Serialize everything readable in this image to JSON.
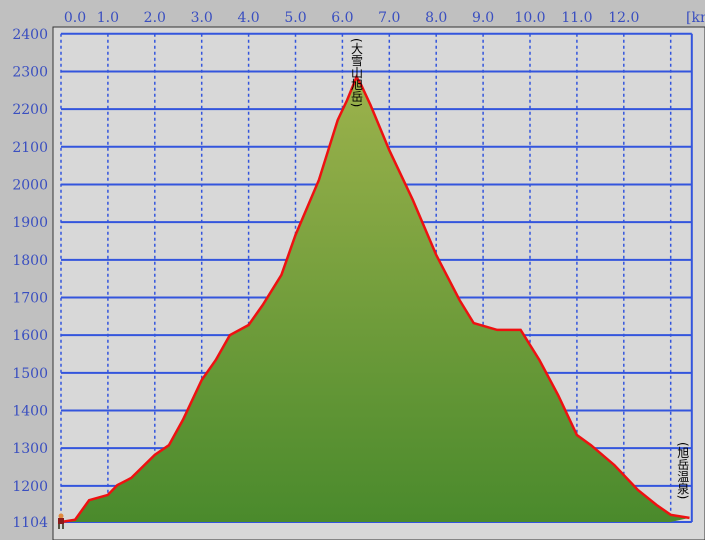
{
  "chart_data": {
    "type": "area",
    "title": "",
    "xlabel": "",
    "x_unit": "[km]",
    "ylabel": "",
    "xlim": [
      0,
      13.45
    ],
    "ylim": [
      1104,
      2400
    ],
    "x_ticks": [
      "0.0",
      "1.0",
      "2.0",
      "3.0",
      "4.0",
      "5.0",
      "6.0",
      "7.0",
      "8.0",
      "9.0",
      "10.0",
      "11.0",
      "12.0"
    ],
    "y_ticks": [
      "2400",
      "2300",
      "2200",
      "2100",
      "2000",
      "1900",
      "1800",
      "1700",
      "1600",
      "1500",
      "1400",
      "1300",
      "1200",
      "1104"
    ],
    "grid": true,
    "annotations": [
      {
        "text": "(大雪山旭岳)",
        "x": 6.3
      },
      {
        "text": "(旭岳温泉)",
        "x": 13.3
      }
    ],
    "colors": {
      "line": "#ee1111",
      "fill_top": "#9cb24c",
      "fill_bottom": "#4a8a2c",
      "grid": "#3355dd",
      "plot_bg": "#d8d8d8"
    },
    "x": [
      0,
      0.3,
      0.6,
      1.0,
      1.2,
      1.5,
      2.0,
      2.3,
      2.6,
      3.0,
      3.3,
      3.6,
      4.0,
      4.3,
      4.7,
      5.0,
      5.5,
      5.9,
      6.1,
      6.3,
      6.4,
      6.6,
      7.0,
      7.5,
      8.0,
      8.5,
      8.8,
      9.3,
      9.8,
      10.2,
      10.6,
      11.0,
      11.3,
      11.8,
      12.3,
      12.7,
      13.0,
      13.4
    ],
    "y": [
      1104,
      1110,
      1162,
      1176,
      1202,
      1221,
      1282,
      1308,
      1375,
      1481,
      1534,
      1600,
      1627,
      1680,
      1760,
      1866,
      2012,
      2171,
      2224,
      2285,
      2264,
      2211,
      2091,
      1959,
      1813,
      1693,
      1632,
      1614,
      1614,
      1534,
      1441,
      1335,
      1308,
      1255,
      1189,
      1149,
      1123,
      1115
    ]
  }
}
